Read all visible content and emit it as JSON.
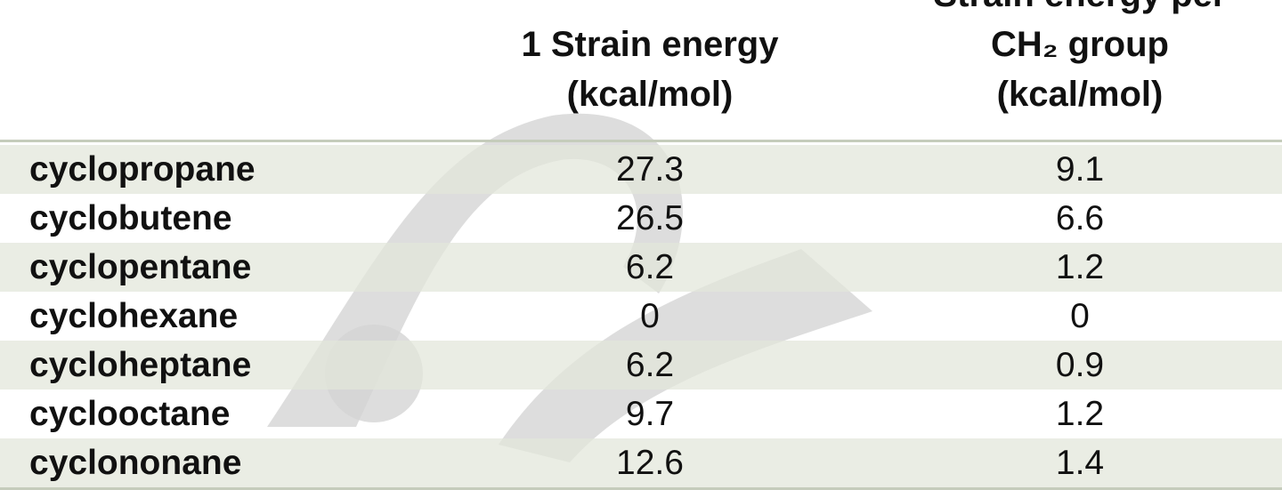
{
  "table": {
    "headers": [
      [
        "1 Strain energy",
        "(kcal/mol)"
      ],
      [
        "Strain energy per",
        "CH₂ group",
        "(kcal/mol)"
      ]
    ],
    "rows": [
      [
        "cyclopropane",
        27.3,
        9.1
      ],
      [
        "cyclobutene",
        26.5,
        6.6
      ],
      [
        "cyclopentane",
        6.2,
        1.2
      ],
      [
        "cyclohexane",
        0,
        0
      ],
      [
        "cycloheptane",
        6.2,
        0.9
      ],
      [
        "cyclooctane",
        9.7,
        1.2
      ],
      [
        "cyclononane",
        12.6,
        1.4
      ]
    ]
  }
}
